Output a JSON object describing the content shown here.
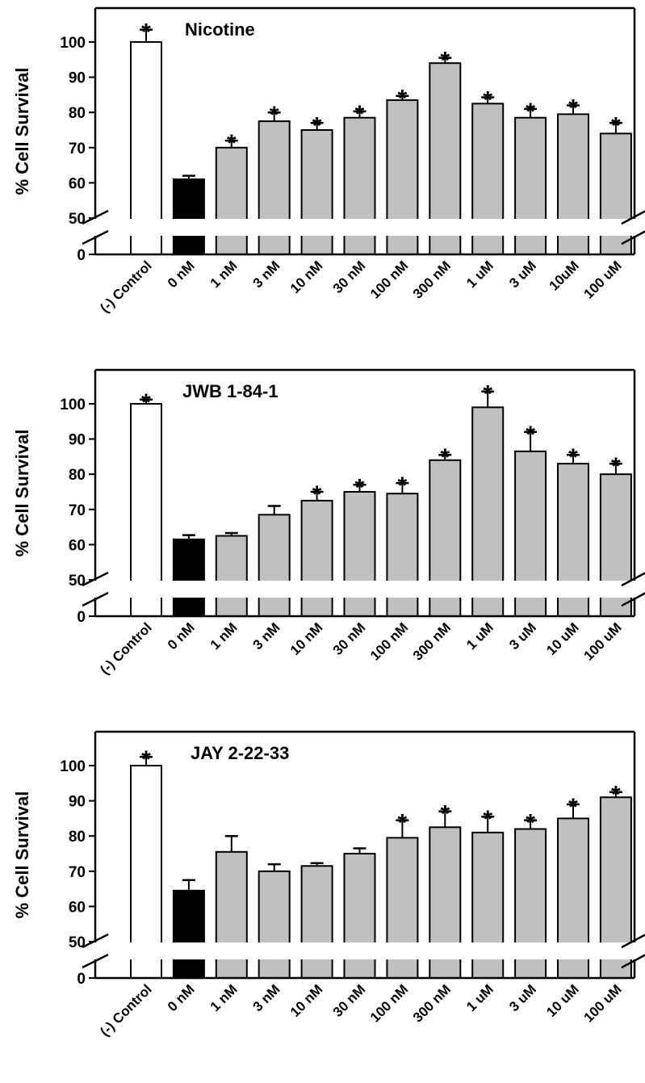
{
  "chart_data": [
    {
      "type": "bar",
      "title": "Nicotine",
      "ylabel": "% Cell Survival",
      "xlabel": "",
      "ylim": [
        0,
        100
      ],
      "axis_break": [
        0,
        50
      ],
      "yticks": [
        "0",
        "50",
        "60",
        "70",
        "80",
        "90",
        "100"
      ],
      "categories": [
        "(-) Control",
        "0 nM",
        "1 nM",
        "3 nM",
        "10 nM",
        "30 nM",
        "100 nM",
        "300 nM",
        "1 uM",
        "3 uM",
        "10uM",
        "100 uM"
      ],
      "values": [
        100,
        61,
        70,
        77.5,
        75,
        78.5,
        83.5,
        94,
        82.5,
        78.5,
        79.5,
        74
      ],
      "errors": [
        3.5,
        1,
        2,
        2.5,
        2,
        1.8,
        1.2,
        1.5,
        1.8,
        2.5,
        2.5,
        3
      ],
      "significant": [
        true,
        false,
        true,
        true,
        true,
        true,
        true,
        true,
        true,
        true,
        true,
        true
      ],
      "bar_colors": [
        "#ffffff",
        "#000000",
        "#c0c0c0",
        "#c0c0c0",
        "#c0c0c0",
        "#c0c0c0",
        "#c0c0c0",
        "#c0c0c0",
        "#c0c0c0",
        "#c0c0c0",
        "#c0c0c0",
        "#c0c0c0"
      ]
    },
    {
      "type": "bar",
      "title": "JWB 1-84-1",
      "ylabel": "% Cell Survival",
      "xlabel": "",
      "ylim": [
        0,
        100
      ],
      "axis_break": [
        0,
        50
      ],
      "yticks": [
        "0",
        "50",
        "60",
        "70",
        "80",
        "90",
        "100"
      ],
      "categories": [
        "(-) Control",
        "0 nM",
        "1 nM",
        "3 nM",
        "10 nM",
        "30 nM",
        "100 nM",
        "300 nM",
        "1 uM",
        "3 uM",
        "10 uM",
        "100 uM"
      ],
      "values": [
        100,
        61.5,
        62.5,
        68.5,
        72.5,
        75,
        74.5,
        84,
        99,
        86.5,
        83,
        80
      ],
      "errors": [
        1.2,
        1.2,
        0.8,
        2.5,
        2.5,
        2,
        3,
        1.5,
        4.5,
        5.5,
        2.5,
        3
      ],
      "significant": [
        true,
        false,
        false,
        false,
        true,
        true,
        true,
        true,
        true,
        true,
        true,
        true
      ],
      "bar_colors": [
        "#ffffff",
        "#000000",
        "#c0c0c0",
        "#c0c0c0",
        "#c0c0c0",
        "#c0c0c0",
        "#c0c0c0",
        "#c0c0c0",
        "#c0c0c0",
        "#c0c0c0",
        "#c0c0c0",
        "#c0c0c0"
      ]
    },
    {
      "type": "bar",
      "title": "JAY 2-22-33",
      "ylabel": "% Cell Survival",
      "xlabel": "",
      "ylim": [
        0,
        100
      ],
      "axis_break": [
        0,
        50
      ],
      "yticks": [
        "0",
        "50",
        "60",
        "70",
        "80",
        "90",
        "100"
      ],
      "categories": [
        "(-) Control",
        "0 nM",
        "1 nM",
        "3 nM",
        "10 nM",
        "30 nM",
        "100 nM",
        "300 nM",
        "1 uM",
        "3 uM",
        "10 uM",
        "100 uM"
      ],
      "values": [
        100,
        64.5,
        75.5,
        70,
        71.5,
        75,
        79.5,
        82.5,
        81,
        82,
        85,
        91
      ],
      "errors": [
        2.5,
        3,
        4.5,
        2,
        0.8,
        1.5,
        5,
        4.5,
        4.5,
        2.5,
        4,
        1.5
      ],
      "significant": [
        true,
        false,
        false,
        false,
        false,
        false,
        true,
        true,
        true,
        true,
        true,
        true
      ],
      "bar_colors": [
        "#ffffff",
        "#000000",
        "#c0c0c0",
        "#c0c0c0",
        "#c0c0c0",
        "#c0c0c0",
        "#c0c0c0",
        "#c0c0c0",
        "#c0c0c0",
        "#c0c0c0",
        "#c0c0c0",
        "#c0c0c0"
      ]
    }
  ]
}
